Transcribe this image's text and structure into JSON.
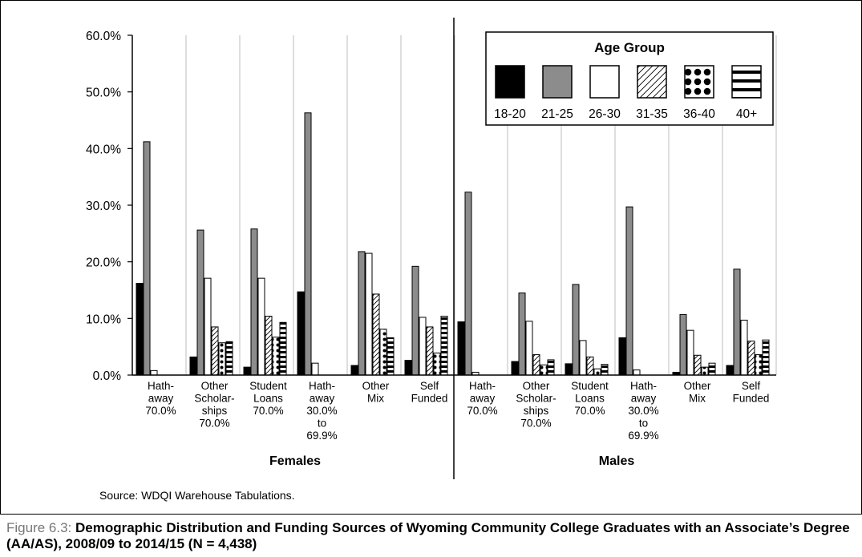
{
  "figure": {
    "source_note": "Source: WDQI Warehouse Tabulations.",
    "caption_label": "Figure 6.3:",
    "caption_text": "Demographic Distribution and Funding Sources of Wyoming Community College Graduates with an Associate’s Degree (AA/AS), 2008/09 to 2014/15 (N = 4,438)"
  },
  "chart_data": {
    "type": "bar",
    "legend_title": "Age Group",
    "legend_position": "top-right",
    "ylim": [
      0,
      60
    ],
    "yticks": [
      "0.0%",
      "10.0%",
      "20.0%",
      "30.0%",
      "40.0%",
      "50.0%",
      "60.0%"
    ],
    "grid": "vertical separators between categories",
    "series": [
      {
        "name": "18-20",
        "pattern": "solid-black"
      },
      {
        "name": "21-25",
        "pattern": "solid-gray",
        "color": "#8c8c8c"
      },
      {
        "name": "26-30",
        "pattern": "white"
      },
      {
        "name": "31-35",
        "pattern": "diagonal-hatch"
      },
      {
        "name": "36-40",
        "pattern": "dots"
      },
      {
        "name": "40+",
        "pattern": "horizontal-stripes"
      }
    ],
    "panels": [
      {
        "name": "Females",
        "categories": [
          {
            "label": [
              "Hath-",
              "away",
              "70.0%"
            ],
            "values": [
              16.2,
              41.2,
              0.8,
              0,
              0,
              0
            ]
          },
          {
            "label": [
              "Other",
              "Scholar-",
              "ships",
              "70.0%"
            ],
            "values": [
              3.2,
              25.6,
              17.1,
              8.5,
              5.7,
              5.9
            ]
          },
          {
            "label": [
              "Student",
              "Loans",
              "70.0%"
            ],
            "values": [
              1.4,
              25.8,
              17.1,
              10.4,
              6.7,
              9.3
            ]
          },
          {
            "label": [
              "Hath-",
              "away",
              "30.0%",
              "to",
              "69.9%"
            ],
            "values": [
              14.7,
              46.3,
              2.1,
              0,
              0,
              0
            ]
          },
          {
            "label": [
              "Other",
              "Mix"
            ],
            "values": [
              1.7,
              21.8,
              21.5,
              14.3,
              8.1,
              6.6
            ]
          },
          {
            "label": [
              "Self",
              "Funded"
            ],
            "values": [
              2.6,
              19.2,
              10.2,
              8.5,
              3.9,
              10.4
            ]
          }
        ]
      },
      {
        "name": "Males",
        "categories": [
          {
            "label": [
              "Hath-",
              "away",
              "70.0%"
            ],
            "values": [
              9.4,
              32.3,
              0.5,
              0,
              0,
              0
            ]
          },
          {
            "label": [
              "Other",
              "Scholar-",
              "ships",
              "70.0%"
            ],
            "values": [
              2.4,
              14.5,
              9.5,
              3.6,
              1.8,
              2.7
            ]
          },
          {
            "label": [
              "Student",
              "Loans",
              "70.0%"
            ],
            "values": [
              2.0,
              16.0,
              6.1,
              3.2,
              1.1,
              1.9
            ]
          },
          {
            "label": [
              "Hath-",
              "away",
              "30.0%",
              "to",
              "69.9%"
            ],
            "values": [
              6.6,
              29.7,
              0.9,
              0,
              0,
              0
            ]
          },
          {
            "label": [
              "Other",
              "Mix"
            ],
            "values": [
              0.5,
              10.7,
              7.9,
              3.5,
              1.4,
              2.1
            ]
          },
          {
            "label": [
              "Self",
              "Funded"
            ],
            "values": [
              1.7,
              18.7,
              9.7,
              6.0,
              3.6,
              6.2
            ]
          }
        ]
      }
    ]
  }
}
